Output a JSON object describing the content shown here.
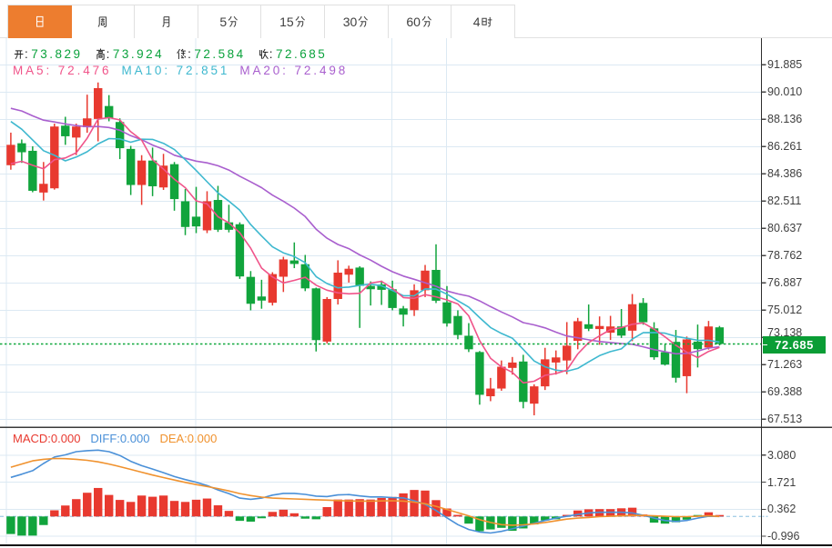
{
  "app": {
    "kind": "stock-chart-panel",
    "background": "#ffffff"
  },
  "tabs": {
    "items": [
      {
        "id": "day",
        "label": "日",
        "active": true
      },
      {
        "id": "week",
        "label": "周",
        "active": false
      },
      {
        "id": "month",
        "label": "月",
        "active": false
      },
      {
        "id": "5min",
        "label": "5分",
        "active": false
      },
      {
        "id": "15min",
        "label": "15分",
        "active": false
      },
      {
        "id": "30min",
        "label": "30分",
        "active": false
      },
      {
        "id": "60min",
        "label": "60分",
        "active": false
      },
      {
        "id": "4hour",
        "label": "4时",
        "active": false
      }
    ],
    "active_color": "#ed7d2f"
  },
  "legend": {
    "ohlc_items": [
      {
        "label": "开:",
        "value": "73.829"
      },
      {
        "label": "高:",
        "value": "73.924"
      },
      {
        "label": "低:",
        "value": "72.584"
      },
      {
        "label": "收:",
        "value": "72.685"
      }
    ],
    "value_color": "#0aa23c",
    "ma_items": [
      {
        "label": "MA5:",
        "value": "72.476",
        "color": "#f0548a"
      },
      {
        "label": "MA10:",
        "value": "72.851",
        "color": "#3eb8cf"
      },
      {
        "label": "MA20:",
        "value": "72.498",
        "color": "#a95fce"
      }
    ]
  },
  "macd_header": {
    "items": [
      {
        "label": "MACD:",
        "value": "0.000",
        "color": "#e8392f"
      },
      {
        "label": "DIFF:",
        "value": "0.000",
        "color": "#4a90d8"
      },
      {
        "label": "DEA:",
        "value": "0.000",
        "color": "#f0922e"
      }
    ]
  },
  "price_axis": {
    "labels": [
      "91.885",
      "90.010",
      "88.136",
      "86.261",
      "84.386",
      "82.511",
      "80.637",
      "78.762",
      "76.887",
      "75.012",
      "73.138",
      "71.263",
      "69.388",
      "67.513"
    ],
    "max": 91.885,
    "min": 67.513
  },
  "current_price": {
    "value": "72.685",
    "badge_color": "#0a9d35",
    "line_color": "#0fa83c"
  },
  "macd_axis": {
    "labels": [
      "3.080",
      "1.721",
      "0.362",
      "-0.996"
    ],
    "values": [
      3.08,
      1.721,
      0.362,
      -0.996
    ]
  },
  "colors": {
    "up": "#e8392f",
    "down": "#11a43c",
    "ma5": "#f0548a",
    "ma10": "#3eb8cf",
    "ma20": "#a95fce",
    "diff": "#4a90d8",
    "dea": "#f0922e",
    "grid": "#dce9f3",
    "axis": "#2e2e2e",
    "divider": "#3a3a3a",
    "macd_zero_dash": "#a9d0e8"
  },
  "chart_data": [
    {
      "type": "candlestick",
      "title": "daily price chart with MA5/MA10/MA20 overlays",
      "ylim": [
        67.513,
        91.885
      ],
      "y_tick_step": 1.875,
      "grid": true,
      "ohlc_order": "open,high,low,close",
      "ohlc": [
        [
          84.98,
          87.22,
          84.67,
          86.38
        ],
        [
          86.49,
          86.75,
          85.14,
          85.87
        ],
        [
          85.97,
          86.28,
          83.12,
          83.22
        ],
        [
          83.1,
          85.2,
          82.55,
          83.7
        ],
        [
          83.39,
          87.84,
          83.3,
          87.64
        ],
        [
          87.7,
          88.31,
          86.38,
          86.97
        ],
        [
          86.88,
          87.84,
          85.68,
          87.64
        ],
        [
          87.59,
          89.83,
          87.21,
          88.2
        ],
        [
          88.16,
          90.67,
          86.62,
          90.28
        ],
        [
          89.05,
          89.8,
          88.0,
          88.19
        ],
        [
          87.95,
          88.2,
          85.4,
          86.15
        ],
        [
          86.1,
          86.31,
          82.93,
          83.62
        ],
        [
          83.62,
          85.67,
          82.25,
          85.3
        ],
        [
          85.3,
          86.19,
          82.85,
          83.53
        ],
        [
          83.45,
          85.76,
          83.28,
          84.95
        ],
        [
          85.05,
          85.2,
          81.85,
          82.65
        ],
        [
          82.5,
          83.34,
          80.17,
          80.73
        ],
        [
          81.44,
          83.49,
          80.31,
          80.77
        ],
        [
          80.5,
          83.19,
          80.31,
          82.5
        ],
        [
          82.59,
          83.56,
          80.39,
          80.54
        ],
        [
          81.05,
          82.26,
          80.36,
          80.54
        ],
        [
          80.92,
          81.05,
          77.16,
          77.33
        ],
        [
          77.3,
          77.7,
          75.0,
          75.45
        ],
        [
          75.95,
          77.1,
          75.11,
          75.67
        ],
        [
          75.52,
          77.62,
          75.33,
          77.49
        ],
        [
          77.31,
          78.68,
          76.26,
          78.5
        ],
        [
          78.43,
          79.67,
          77.9,
          78.19
        ],
        [
          78.17,
          78.81,
          76.32,
          76.51
        ],
        [
          76.51,
          76.56,
          72.17,
          72.95
        ],
        [
          72.85,
          75.91,
          72.72,
          75.78
        ],
        [
          75.78,
          78.44,
          75.4,
          77.59
        ],
        [
          77.45,
          78.07,
          76.91,
          77.86
        ],
        [
          77.94,
          78.03,
          73.79,
          76.68
        ],
        [
          76.68,
          76.99,
          75.33,
          76.45
        ],
        [
          76.78,
          77.04,
          75.37,
          76.41
        ],
        [
          76.45,
          77.04,
          75.0,
          75.16
        ],
        [
          75.13,
          75.3,
          73.89,
          74.7
        ],
        [
          75.01,
          76.79,
          74.61,
          76.38
        ],
        [
          76.38,
          78.12,
          75.91,
          77.73
        ],
        [
          77.78,
          79.54,
          75.5,
          75.66
        ],
        [
          75.55,
          76.67,
          73.88,
          74.1
        ],
        [
          74.61,
          75.0,
          73.01,
          73.3
        ],
        [
          73.25,
          74.12,
          72.13,
          72.32
        ],
        [
          72.13,
          72.2,
          68.51,
          69.19
        ],
        [
          69.09,
          70.35,
          68.75,
          69.62
        ],
        [
          69.62,
          71.55,
          69.47,
          71.12
        ],
        [
          71.04,
          71.79,
          70.58,
          71.41
        ],
        [
          71.48,
          71.94,
          68.26,
          68.7
        ],
        [
          68.58,
          69.91,
          67.78,
          69.77
        ],
        [
          69.77,
          72.42,
          69.52,
          71.63
        ],
        [
          71.41,
          72.24,
          70.58,
          71.76
        ],
        [
          71.55,
          74.19,
          70.61,
          72.57
        ],
        [
          72.9,
          74.48,
          72.32,
          74.25
        ],
        [
          74.04,
          75.4,
          73.57,
          73.73
        ],
        [
          73.71,
          74.58,
          72.63,
          73.92
        ],
        [
          73.46,
          74.62,
          72.96,
          73.89
        ],
        [
          73.89,
          75.09,
          73.1,
          73.26
        ],
        [
          73.6,
          76.12,
          72.88,
          75.42
        ],
        [
          75.51,
          75.84,
          74.01,
          74.18
        ],
        [
          73.76,
          74.18,
          71.6,
          71.77
        ],
        [
          72.12,
          72.66,
          71.2,
          71.27
        ],
        [
          72.83,
          73.65,
          70.03,
          70.36
        ],
        [
          70.47,
          73.2,
          69.3,
          73.0
        ],
        [
          72.85,
          74.02,
          71.07,
          72.33
        ],
        [
          72.44,
          74.27,
          72.3,
          73.89
        ],
        [
          73.829,
          73.924,
          72.584,
          72.685
        ]
      ],
      "ma_windows": [
        5,
        10,
        20
      ],
      "prehistory_closes_for_ma": [
        89.5,
        90.0,
        89.6,
        90.1,
        89.8,
        89.9,
        89.7,
        90.0,
        89.6,
        89.8,
        91.2,
        90.7,
        91.0,
        90.8,
        90.8,
        85.0,
        84.6,
        84.9,
        84.5
      ],
      "current_price_line": 72.685
    },
    {
      "type": "bar",
      "title": "MACD sub-chart (histogram + DIFF + DEA lines)",
      "ylim": [
        -1.675,
        3.76
      ],
      "hist": [
        -0.88,
        -0.96,
        -0.96,
        -0.43,
        0.31,
        0.55,
        0.87,
        1.19,
        1.43,
        1.08,
        0.83,
        0.73,
        1.05,
        0.99,
        1.05,
        0.78,
        0.73,
        0.84,
        0.9,
        0.56,
        0.28,
        -0.22,
        -0.26,
        -0.09,
        0.23,
        0.34,
        0.16,
        -0.11,
        -0.14,
        0.47,
        0.85,
        0.85,
        0.87,
        0.85,
        0.93,
        0.98,
        1.16,
        1.33,
        1.3,
        0.82,
        0.4,
        0.08,
        -0.36,
        -0.74,
        -0.65,
        -0.57,
        -0.72,
        -0.6,
        -0.4,
        -0.2,
        -0.14,
        0.08,
        0.3,
        0.36,
        0.37,
        0.37,
        0.41,
        0.44,
        0.1,
        -0.31,
        -0.36,
        -0.29,
        -0.16,
        -0.05,
        0.21,
        0.0
      ],
      "series": [
        {
          "name": "DIFF",
          "values": [
            1.96,
            2.12,
            2.3,
            2.66,
            2.98,
            3.09,
            3.25,
            3.3,
            3.33,
            3.25,
            3.06,
            2.77,
            2.55,
            2.38,
            2.2,
            2.0,
            1.85,
            1.72,
            1.55,
            1.33,
            1.15,
            0.92,
            0.86,
            0.92,
            1.07,
            1.16,
            1.16,
            1.11,
            1.02,
            1.0,
            1.08,
            1.1,
            1.03,
            0.98,
            0.98,
            0.95,
            0.93,
            0.79,
            0.61,
            0.3,
            -0.07,
            -0.41,
            -0.65,
            -0.78,
            -0.83,
            -0.75,
            -0.62,
            -0.48,
            -0.34,
            -0.2,
            -0.08,
            0.01,
            0.1,
            0.18,
            0.21,
            0.21,
            0.21,
            0.18,
            0.06,
            -0.08,
            -0.2,
            -0.25,
            -0.2,
            -0.08,
            0.01,
            0.0
          ]
        },
        {
          "name": "DEA",
          "values": [
            2.47,
            2.63,
            2.79,
            2.87,
            2.91,
            2.9,
            2.87,
            2.82,
            2.74,
            2.63,
            2.5,
            2.36,
            2.22,
            2.08,
            1.95,
            1.83,
            1.71,
            1.6,
            1.5,
            1.4,
            1.28,
            1.15,
            1.05,
            0.97,
            0.92,
            0.9,
            0.88,
            0.86,
            0.84,
            0.82,
            0.8,
            0.78,
            0.77,
            0.77,
            0.78,
            0.79,
            0.77,
            0.72,
            0.64,
            0.51,
            0.35,
            0.19,
            0.03,
            -0.16,
            -0.3,
            -0.41,
            -0.44,
            -0.42,
            -0.37,
            -0.3,
            -0.22,
            -0.13,
            -0.08,
            -0.05,
            -0.01,
            0.01,
            0.03,
            0.05,
            0.05,
            0.03,
            0.01,
            -0.01,
            -0.01,
            0.01,
            0.03,
            0.0
          ]
        }
      ]
    }
  ]
}
